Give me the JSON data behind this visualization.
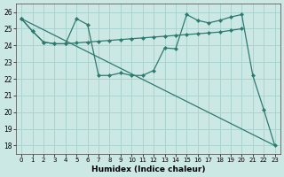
{
  "xlabel": "Humidex (Indice chaleur)",
  "bg_color": "#cce8e5",
  "grid_color": "#aad4d0",
  "line_color": "#2d7a6e",
  "xlim": [
    -0.5,
    23.5
  ],
  "ylim": [
    17.5,
    26.5
  ],
  "yticks": [
    18,
    19,
    20,
    21,
    22,
    23,
    24,
    25,
    26
  ],
  "xticks": [
    0,
    1,
    2,
    3,
    4,
    5,
    6,
    7,
    8,
    9,
    10,
    11,
    12,
    13,
    14,
    15,
    16,
    17,
    18,
    19,
    20,
    21,
    22,
    23
  ],
  "lines": [
    {
      "x": [
        0,
        1,
        2,
        3,
        4,
        5,
        6,
        7,
        8,
        9,
        10,
        11,
        12,
        13,
        14,
        15,
        16,
        17,
        18,
        19,
        20
      ],
      "y": [
        25.6,
        24.85,
        24.2,
        24.1,
        24.1,
        24.15,
        24.2,
        24.25,
        24.3,
        24.35,
        24.4,
        24.45,
        24.5,
        24.55,
        24.6,
        24.65,
        24.7,
        24.75,
        24.8,
        24.9,
        25.0
      ]
    },
    {
      "x": [
        0,
        1,
        2,
        3,
        4,
        5,
        6,
        7,
        8,
        9,
        10,
        11,
        12,
        13,
        14,
        15,
        16,
        17,
        18,
        19,
        20,
        21,
        22,
        23
      ],
      "y": [
        25.6,
        24.85,
        24.2,
        24.1,
        24.1,
        25.6,
        25.25,
        22.2,
        22.2,
        22.35,
        22.2,
        22.2,
        22.5,
        23.85,
        23.8,
        25.85,
        25.5,
        25.35,
        25.5,
        25.7,
        25.85,
        22.2,
        20.15,
        18.0
      ]
    },
    {
      "x": [
        0,
        23
      ],
      "y": [
        25.6,
        18.0
      ]
    }
  ]
}
